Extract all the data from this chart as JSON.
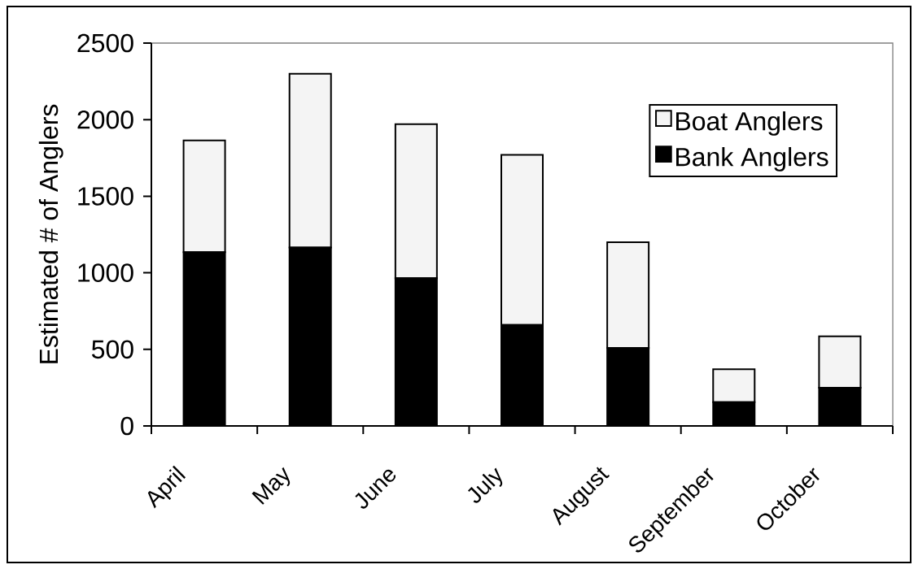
{
  "chart_data": {
    "type": "bar",
    "stacked": true,
    "ylabel": "Estimated # of Anglers",
    "categories": [
      "April",
      "May",
      "June",
      "July",
      "August",
      "September",
      "October"
    ],
    "series": [
      {
        "name": "Bank Anglers",
        "color": "#000000",
        "values": [
          1135,
          1165,
          965,
          660,
          510,
          155,
          250
        ]
      },
      {
        "name": "Boat Anglers",
        "color": "#f4f4f4",
        "values": [
          730,
          1135,
          1005,
          1110,
          690,
          215,
          335
        ]
      }
    ],
    "ylim": [
      0,
      2500
    ],
    "yticks": [
      0,
      500,
      1000,
      1500,
      2000,
      2500
    ],
    "grid": false,
    "legend": "top right"
  }
}
